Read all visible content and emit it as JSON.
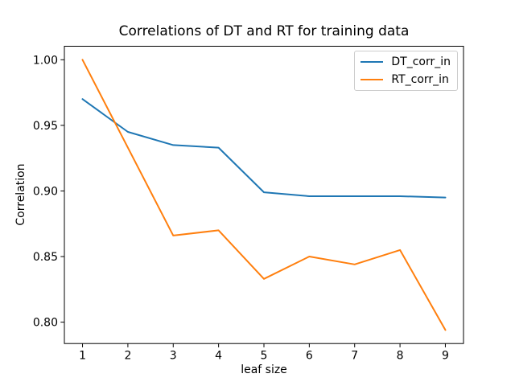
{
  "figure": {
    "background": "#ffffff",
    "text_color": "#000000",
    "spine_color": "#000000"
  },
  "chart_data": {
    "type": "line",
    "title": "Correlations of DT and RT for training data",
    "xlabel": "leaf size",
    "ylabel": "Correlation",
    "x": [
      1,
      2,
      3,
      4,
      5,
      6,
      7,
      8,
      9
    ],
    "series": [
      {
        "name": "DT_corr_in",
        "color": "#1f77b4",
        "values": [
          0.97,
          0.945,
          0.935,
          0.933,
          0.899,
          0.896,
          0.896,
          0.896,
          0.895
        ]
      },
      {
        "name": "RT_corr_in",
        "color": "#ff7f0e",
        "values": [
          1.0,
          0.933,
          0.866,
          0.87,
          0.833,
          0.85,
          0.844,
          0.855,
          0.794
        ]
      }
    ],
    "xlim": [
      0.6,
      9.4
    ],
    "ylim": [
      0.7837,
      1.0103
    ],
    "xticks": [
      1,
      2,
      3,
      4,
      5,
      6,
      7,
      8,
      9
    ],
    "xtick_labels": [
      "1",
      "2",
      "3",
      "4",
      "5",
      "6",
      "7",
      "8",
      "9"
    ],
    "yticks": [
      0.8,
      0.85,
      0.9,
      0.95,
      1.0
    ],
    "ytick_labels": [
      "0.80",
      "0.85",
      "0.90",
      "0.95",
      "1.00"
    ],
    "grid": false,
    "legend": {
      "position": "upper right",
      "entries": [
        "DT_corr_in",
        "RT_corr_in"
      ]
    }
  }
}
